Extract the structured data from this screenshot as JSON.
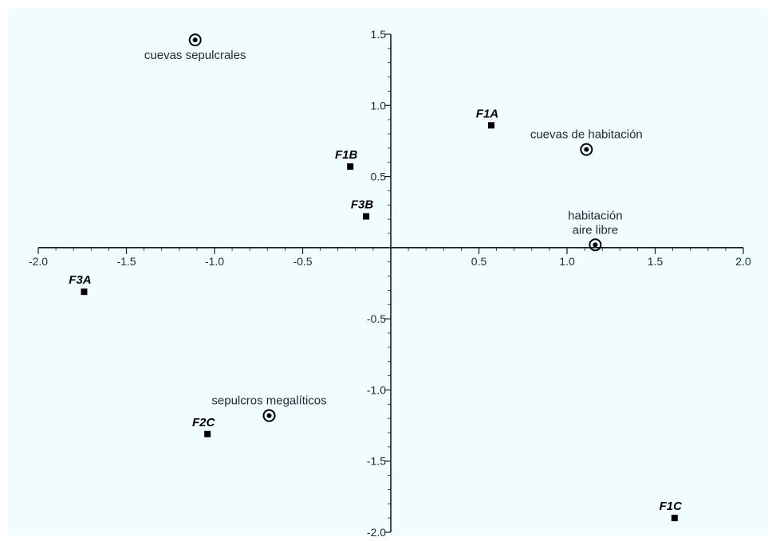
{
  "chart_data": {
    "type": "scatter",
    "title": "",
    "xlabel": "",
    "ylabel": "",
    "xlim": [
      -2.0,
      2.0
    ],
    "ylim": [
      -2.0,
      1.5
    ],
    "grid": false,
    "x_ticks": [
      {
        "value": -2.0,
        "label": "-2.0"
      },
      {
        "value": -1.5,
        "label": "-1.5"
      },
      {
        "value": -1.0,
        "label": "-1.0"
      },
      {
        "value": -0.5,
        "label": "-0.5"
      },
      {
        "value": 0.5,
        "label": "0.5"
      },
      {
        "value": 1.0,
        "label": "1.0"
      },
      {
        "value": 1.5,
        "label": "1.5"
      },
      {
        "value": 2.0,
        "label": "2.0"
      }
    ],
    "y_ticks": [
      {
        "value": 1.5,
        "label": "1.5"
      },
      {
        "value": 1.0,
        "label": "1.0"
      },
      {
        "value": 0.5,
        "label": "0.5"
      },
      {
        "value": -0.5,
        "label": "-0.5"
      },
      {
        "value": -1.0,
        "label": "-1.0"
      },
      {
        "value": -1.5,
        "label": "-1.5"
      },
      {
        "value": -2.0,
        "label": "-2.0"
      }
    ],
    "series": [
      {
        "marker": "circle-dot",
        "points": [
          {
            "label": [
              "cuevas sepulcrales"
            ],
            "x": -1.11,
            "y": 1.46
          },
          {
            "label": [
              "cuevas de habitación"
            ],
            "x": 1.11,
            "y": 0.69
          },
          {
            "label": [
              "habitación",
              "aire libre"
            ],
            "x": 1.16,
            "y": 0.02
          },
          {
            "label": [
              "sepulcros megalíticos"
            ],
            "x": -0.69,
            "y": -1.18
          }
        ]
      },
      {
        "marker": "square",
        "points": [
          {
            "label": [
              "F1A"
            ],
            "x": 0.57,
            "y": 0.86
          },
          {
            "label": [
              "F1B"
            ],
            "x": -0.23,
            "y": 0.57
          },
          {
            "label": [
              "F3B"
            ],
            "x": -0.14,
            "y": 0.22
          },
          {
            "label": [
              "F3A"
            ],
            "x": -1.74,
            "y": -0.31
          },
          {
            "label": [
              "F2C"
            ],
            "x": -1.04,
            "y": -1.31
          },
          {
            "label": [
              "F1C"
            ],
            "x": 1.61,
            "y": -1.9
          }
        ]
      }
    ]
  },
  "colors": {
    "plot_background": "#f0fcfd",
    "axis": "#1a1a1a",
    "text": "#1a2a3a",
    "marker": "#000000"
  }
}
